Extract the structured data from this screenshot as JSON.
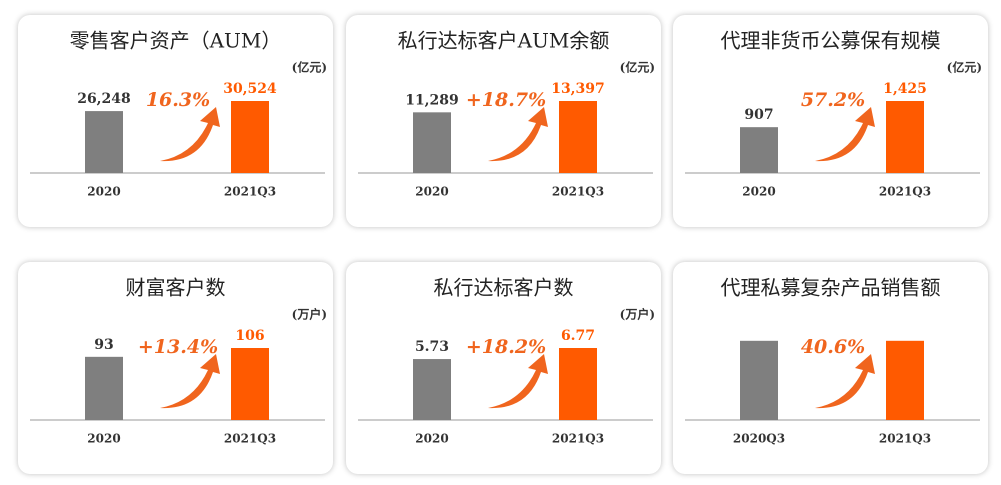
{
  "chart_data": [
    {
      "type": "bar",
      "title": "零售客户资产（AUM）",
      "unit": "(亿元)",
      "categories": [
        "2020",
        "2021Q3"
      ],
      "values": [
        26248,
        30524
      ],
      "value_labels": [
        "26,248",
        "30,524"
      ],
      "growth": "16.3%",
      "colors": [
        "#7f7f7f",
        "#ff5a00"
      ]
    },
    {
      "type": "bar",
      "title": "私行达标客户AUM余额",
      "unit": "(亿元)",
      "categories": [
        "2020",
        "2021Q3"
      ],
      "values": [
        11289,
        13397
      ],
      "value_labels": [
        "11,289",
        "13,397"
      ],
      "growth": "+18.7%",
      "colors": [
        "#7f7f7f",
        "#ff5a00"
      ]
    },
    {
      "type": "bar",
      "title": "代理非货币公募保有规模",
      "unit": "(亿元)",
      "categories": [
        "2020",
        "2021Q3"
      ],
      "values": [
        907,
        1425
      ],
      "value_labels": [
        "907",
        "1,425"
      ],
      "growth": "57.2%",
      "colors": [
        "#7f7f7f",
        "#ff5a00"
      ]
    },
    {
      "type": "bar",
      "title": "财富客户数",
      "unit": "(万户)",
      "categories": [
        "2020",
        "2021Q3"
      ],
      "values": [
        93,
        106
      ],
      "growth": "+13.4%",
      "colors": [
        "#7f7f7f",
        "#ff5a00"
      ]
    },
    {
      "type": "bar",
      "title": "私行达标客户数",
      "unit": "(万户)",
      "categories": [
        "2020",
        "2021Q3"
      ],
      "values": [
        5.73,
        6.77
      ],
      "growth": "+18.2%",
      "colors": [
        "#7f7f7f",
        "#ff5a00"
      ]
    },
    {
      "type": "bar",
      "title": "代理私募复杂产品销售额",
      "categories": [
        "2020Q3",
        "2021Q3"
      ],
      "values": [
        null,
        null
      ],
      "growth": "40.6%",
      "colors": [
        "#7f7f7f",
        "#ff5a00"
      ]
    }
  ]
}
